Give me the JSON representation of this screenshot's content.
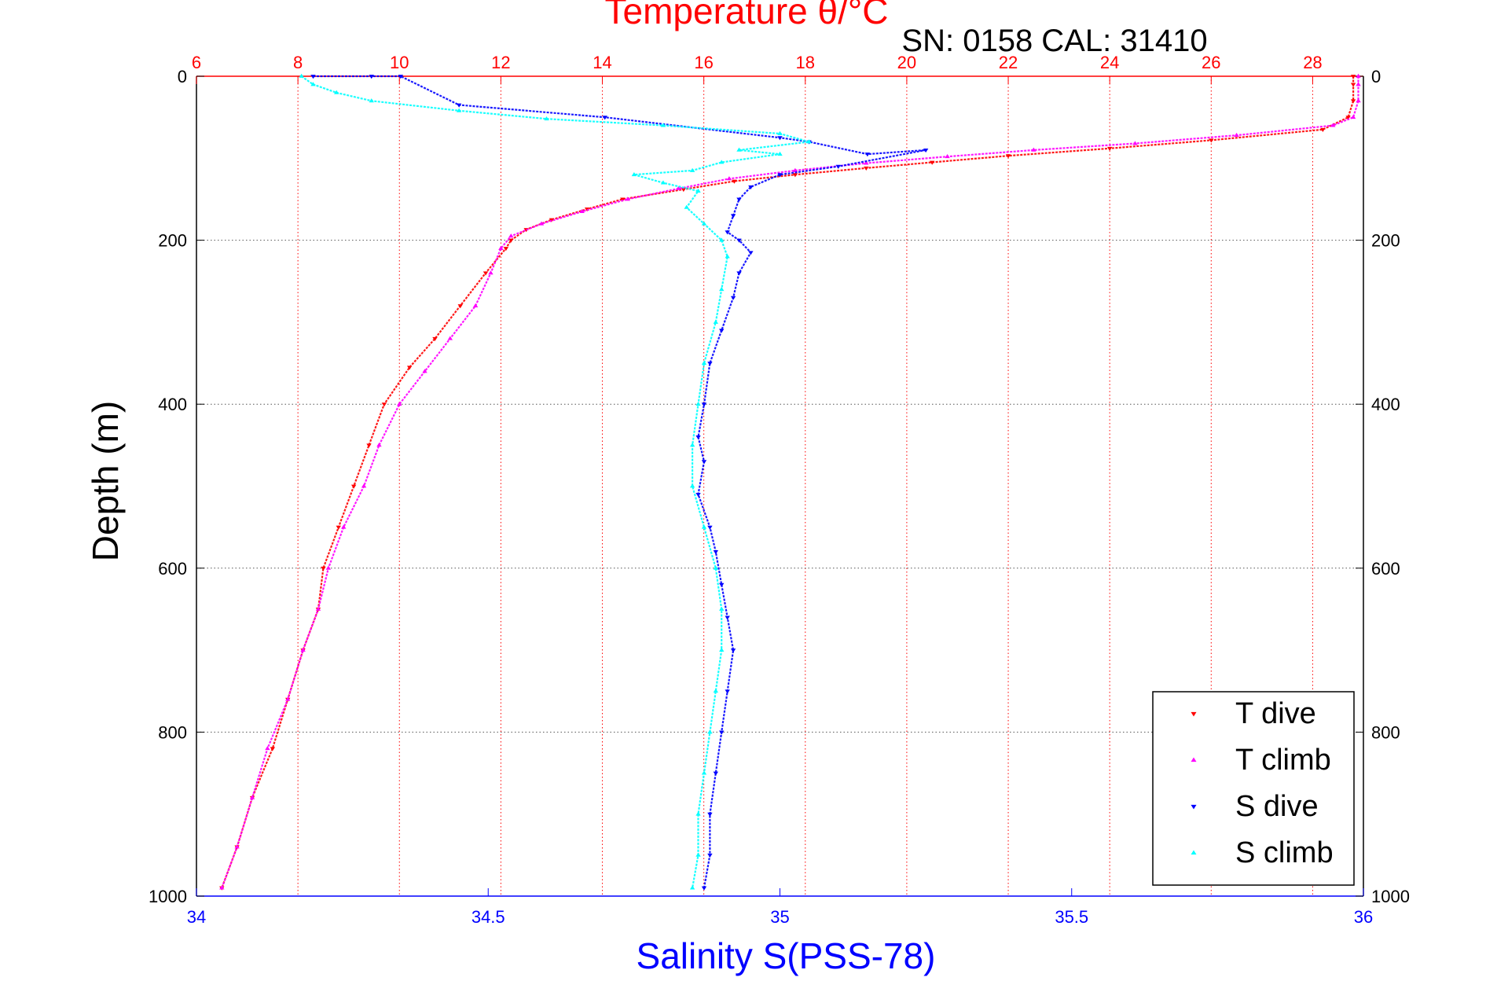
{
  "chart_data": {
    "type": "scatter",
    "title": "Temperature θ/°C",
    "subtitle": "SN: 0158  CAL: 31410",
    "ylabel": "Depth (m)",
    "xlabel": "Salinity S(PSS-78)",
    "y_axis": {
      "label": "Depth (m)",
      "range": [
        0,
        1000
      ],
      "inverted": true,
      "ticks": [
        "0",
        "200",
        "400",
        "600",
        "800",
        "1000"
      ]
    },
    "x_axis_top": {
      "label": "Temperature θ/°C",
      "range": [
        6,
        29
      ],
      "ticks": [
        "6",
        "8",
        "10",
        "12",
        "14",
        "16",
        "18",
        "20",
        "22",
        "24",
        "26",
        "28"
      ],
      "color": "#ff0000"
    },
    "x_axis_bottom": {
      "label": "Salinity S(PSS-78)",
      "range": [
        34,
        36
      ],
      "ticks": [
        "34",
        "34.5",
        "35",
        "35.5",
        "36"
      ],
      "color": "#0000ff"
    },
    "grid": true,
    "legend_position": "bottom-right",
    "series": [
      {
        "name": "T dive",
        "axis": "temperature",
        "marker": "down-triangle",
        "color": "#ff0000",
        "points": [
          [
            28.8,
            0
          ],
          [
            28.8,
            10
          ],
          [
            28.8,
            30
          ],
          [
            28.7,
            50
          ],
          [
            28.2,
            65
          ],
          [
            26.0,
            78
          ],
          [
            24.0,
            88
          ],
          [
            22.0,
            97
          ],
          [
            20.5,
            105
          ],
          [
            19.2,
            112
          ],
          [
            17.8,
            120
          ],
          [
            16.6,
            128
          ],
          [
            15.6,
            138
          ],
          [
            14.4,
            150
          ],
          [
            13.7,
            162
          ],
          [
            13.0,
            175
          ],
          [
            12.5,
            187
          ],
          [
            12.2,
            200
          ],
          [
            12.1,
            210
          ],
          [
            11.7,
            240
          ],
          [
            11.2,
            280
          ],
          [
            10.7,
            320
          ],
          [
            10.2,
            355
          ],
          [
            9.7,
            400
          ],
          [
            9.4,
            450
          ],
          [
            9.1,
            500
          ],
          [
            8.8,
            550
          ],
          [
            8.5,
            600
          ],
          [
            8.4,
            650
          ],
          [
            8.1,
            700
          ],
          [
            7.8,
            760
          ],
          [
            7.5,
            820
          ],
          [
            7.1,
            880
          ],
          [
            6.8,
            940
          ],
          [
            6.5,
            990
          ]
        ]
      },
      {
        "name": "T climb",
        "axis": "temperature",
        "marker": "up-triangle",
        "color": "#ff00ff",
        "points": [
          [
            28.9,
            0
          ],
          [
            28.9,
            10
          ],
          [
            28.9,
            30
          ],
          [
            28.8,
            50
          ],
          [
            28.4,
            60
          ],
          [
            26.5,
            72
          ],
          [
            24.5,
            82
          ],
          [
            22.5,
            90
          ],
          [
            20.8,
            98
          ],
          [
            19.2,
            106
          ],
          [
            17.8,
            115
          ],
          [
            16.5,
            125
          ],
          [
            15.5,
            137
          ],
          [
            14.5,
            150
          ],
          [
            13.6,
            165
          ],
          [
            12.8,
            180
          ],
          [
            12.2,
            195
          ],
          [
            12.0,
            210
          ],
          [
            11.8,
            240
          ],
          [
            11.5,
            280
          ],
          [
            11.0,
            320
          ],
          [
            10.5,
            360
          ],
          [
            10.0,
            400
          ],
          [
            9.6,
            450
          ],
          [
            9.3,
            500
          ],
          [
            8.9,
            550
          ],
          [
            8.6,
            600
          ],
          [
            8.4,
            650
          ],
          [
            8.1,
            700
          ],
          [
            7.8,
            760
          ],
          [
            7.4,
            820
          ],
          [
            7.1,
            880
          ],
          [
            6.8,
            940
          ],
          [
            6.5,
            990
          ]
        ]
      },
      {
        "name": "S dive",
        "axis": "salinity",
        "marker": "down-triangle",
        "color": "#0000ff",
        "points": [
          [
            34.2,
            0
          ],
          [
            34.3,
            0
          ],
          [
            34.35,
            0
          ],
          [
            34.45,
            35
          ],
          [
            34.7,
            50
          ],
          [
            35.0,
            75
          ],
          [
            35.05,
            80
          ],
          [
            35.15,
            95
          ],
          [
            35.25,
            90
          ],
          [
            35.1,
            110
          ],
          [
            35.0,
            120
          ],
          [
            34.95,
            135
          ],
          [
            34.93,
            150
          ],
          [
            34.92,
            170
          ],
          [
            34.91,
            190
          ],
          [
            34.93,
            200
          ],
          [
            34.95,
            215
          ],
          [
            34.93,
            240
          ],
          [
            34.92,
            270
          ],
          [
            34.9,
            310
          ],
          [
            34.88,
            350
          ],
          [
            34.87,
            400
          ],
          [
            34.86,
            440
          ],
          [
            34.87,
            470
          ],
          [
            34.86,
            510
          ],
          [
            34.88,
            550
          ],
          [
            34.89,
            580
          ],
          [
            34.9,
            620
          ],
          [
            34.91,
            660
          ],
          [
            34.92,
            700
          ],
          [
            34.91,
            750
          ],
          [
            34.9,
            800
          ],
          [
            34.89,
            850
          ],
          [
            34.88,
            900
          ],
          [
            34.88,
            950
          ],
          [
            34.87,
            990
          ]
        ]
      },
      {
        "name": "S climb",
        "axis": "salinity",
        "marker": "up-triangle",
        "color": "#00ffff",
        "points": [
          [
            34.18,
            0
          ],
          [
            34.2,
            10
          ],
          [
            34.24,
            20
          ],
          [
            34.3,
            30
          ],
          [
            34.45,
            42
          ],
          [
            34.6,
            52
          ],
          [
            34.8,
            60
          ],
          [
            35.0,
            70
          ],
          [
            35.05,
            80
          ],
          [
            34.93,
            90
          ],
          [
            35.0,
            95
          ],
          [
            34.9,
            105
          ],
          [
            34.85,
            115
          ],
          [
            34.75,
            120
          ],
          [
            34.8,
            130
          ],
          [
            34.86,
            140
          ],
          [
            34.84,
            160
          ],
          [
            34.87,
            180
          ],
          [
            34.9,
            200
          ],
          [
            34.91,
            220
          ],
          [
            34.9,
            260
          ],
          [
            34.89,
            300
          ],
          [
            34.87,
            350
          ],
          [
            34.86,
            400
          ],
          [
            34.85,
            450
          ],
          [
            34.85,
            500
          ],
          [
            34.87,
            550
          ],
          [
            34.89,
            600
          ],
          [
            34.9,
            650
          ],
          [
            34.9,
            700
          ],
          [
            34.89,
            750
          ],
          [
            34.88,
            800
          ],
          [
            34.87,
            850
          ],
          [
            34.86,
            900
          ],
          [
            34.86,
            950
          ],
          [
            34.85,
            990
          ]
        ]
      }
    ]
  }
}
